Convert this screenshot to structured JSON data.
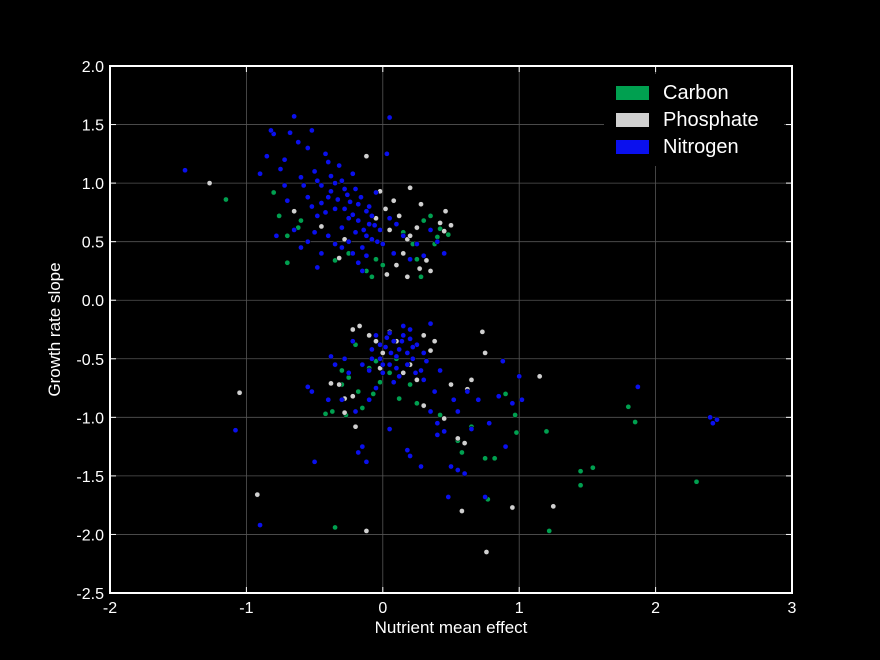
{
  "chart_data": {
    "type": "scatter",
    "title": "",
    "xlabel": "Nutrient mean effect",
    "ylabel": "Growth rate slope",
    "xlim": [
      -2,
      3
    ],
    "ylim": [
      -2.5,
      2.0
    ],
    "xticks": [
      "-2",
      "-1",
      "0",
      "1",
      "2",
      "3"
    ],
    "yticks": [
      "-2.5",
      "-2.0",
      "-1.5",
      "-1.0",
      "-0.5",
      "0.0",
      "0.5",
      "1.0",
      "1.5",
      "2.0"
    ],
    "grid": true,
    "legend_position": "top-right",
    "background": "#000000",
    "axes_color": "#ffffff",
    "grid_color": "#555555",
    "series": [
      {
        "name": "Carbon",
        "color": "#00a050",
        "points": [
          [
            -1.15,
            0.86
          ],
          [
            -0.8,
            0.92
          ],
          [
            -0.76,
            0.72
          ],
          [
            -0.7,
            0.55
          ],
          [
            -0.7,
            0.32
          ],
          [
            -0.62,
            0.62
          ],
          [
            -0.6,
            0.68
          ],
          [
            -0.35,
            0.34
          ],
          [
            -0.25,
            0.4
          ],
          [
            -0.12,
            0.25
          ],
          [
            -0.08,
            0.2
          ],
          [
            -0.05,
            0.35
          ],
          [
            0.0,
            0.3
          ],
          [
            0.15,
            0.58
          ],
          [
            0.22,
            0.48
          ],
          [
            0.25,
            0.35
          ],
          [
            0.3,
            0.68
          ],
          [
            0.35,
            0.72
          ],
          [
            0.38,
            0.48
          ],
          [
            0.4,
            0.54
          ],
          [
            0.42,
            0.61
          ],
          [
            0.48,
            0.56
          ],
          [
            0.28,
            0.2
          ],
          [
            -0.3,
            -0.72
          ],
          [
            -0.25,
            -0.66
          ],
          [
            -0.2,
            -0.38
          ],
          [
            -0.18,
            -0.78
          ],
          [
            -0.1,
            -0.58
          ],
          [
            -0.05,
            -0.52
          ],
          [
            -0.02,
            -0.7
          ],
          [
            0.05,
            -0.62
          ],
          [
            0.1,
            -0.5
          ],
          [
            -0.42,
            -0.97
          ],
          [
            -0.37,
            -0.95
          ],
          [
            -0.27,
            -0.98
          ],
          [
            -0.07,
            -0.8
          ],
          [
            0.12,
            -0.84
          ],
          [
            -0.3,
            -0.6
          ],
          [
            -0.15,
            -0.92
          ],
          [
            0.2,
            -0.72
          ],
          [
            0.25,
            -0.88
          ],
          [
            0.3,
            -0.9
          ],
          [
            0.55,
            -1.2
          ],
          [
            0.58,
            -1.3
          ],
          [
            0.75,
            -1.35
          ],
          [
            0.77,
            -1.7
          ],
          [
            0.82,
            -1.35
          ],
          [
            0.9,
            -0.8
          ],
          [
            0.97,
            -0.98
          ],
          [
            0.98,
            -1.13
          ],
          [
            1.2,
            -1.12
          ],
          [
            1.22,
            -1.97
          ],
          [
            1.45,
            -1.46
          ],
          [
            1.45,
            -1.58
          ],
          [
            1.54,
            -1.43
          ],
          [
            1.8,
            -0.91
          ],
          [
            1.85,
            -1.04
          ],
          [
            2.3,
            -1.55
          ],
          [
            -0.35,
            -1.94
          ],
          [
            0.42,
            -0.98
          ],
          [
            0.65,
            -1.08
          ]
        ]
      },
      {
        "name": "Phosphate",
        "color": "#d0d0d0",
        "points": [
          [
            -1.27,
            1.0
          ],
          [
            -0.65,
            0.76
          ],
          [
            -0.45,
            0.63
          ],
          [
            -0.32,
            0.36
          ],
          [
            -0.28,
            0.52
          ],
          [
            -0.12,
            1.23
          ],
          [
            -0.05,
            0.7
          ],
          [
            -0.02,
            0.93
          ],
          [
            0.02,
            0.78
          ],
          [
            0.05,
            0.6
          ],
          [
            0.08,
            0.85
          ],
          [
            0.12,
            0.72
          ],
          [
            0.18,
            0.52
          ],
          [
            0.2,
            0.55
          ],
          [
            0.2,
            0.96
          ],
          [
            0.25,
            0.62
          ],
          [
            0.27,
            0.27
          ],
          [
            0.28,
            0.82
          ],
          [
            0.32,
            0.34
          ],
          [
            0.35,
            0.25
          ],
          [
            0.42,
            0.66
          ],
          [
            0.45,
            0.59
          ],
          [
            0.46,
            0.76
          ],
          [
            0.5,
            0.64
          ],
          [
            0.03,
            0.22
          ],
          [
            0.15,
            0.4
          ],
          [
            0.1,
            0.3
          ],
          [
            0.18,
            0.2
          ],
          [
            -1.05,
            -0.79
          ],
          [
            -0.92,
            -1.66
          ],
          [
            -0.38,
            -0.71
          ],
          [
            -0.32,
            -0.72
          ],
          [
            -0.28,
            -0.96
          ],
          [
            -0.22,
            -0.25
          ],
          [
            -0.22,
            -0.82
          ],
          [
            -0.2,
            -1.08
          ],
          [
            -0.17,
            -0.22
          ],
          [
            -0.12,
            -1.97
          ],
          [
            -0.1,
            -0.3
          ],
          [
            -0.05,
            -0.35
          ],
          [
            -0.02,
            -0.58
          ],
          [
            0.0,
            -0.45
          ],
          [
            0.05,
            -0.27
          ],
          [
            0.1,
            -0.35
          ],
          [
            0.15,
            -0.62
          ],
          [
            0.2,
            -0.55
          ],
          [
            0.25,
            -0.68
          ],
          [
            0.3,
            -0.9
          ],
          [
            0.3,
            -0.3
          ],
          [
            0.35,
            -0.43
          ],
          [
            0.38,
            -0.35
          ],
          [
            0.45,
            -1.01
          ],
          [
            0.5,
            -0.72
          ],
          [
            0.55,
            -1.18
          ],
          [
            0.58,
            -1.8
          ],
          [
            0.6,
            -1.22
          ],
          [
            0.65,
            -0.68
          ],
          [
            0.73,
            -0.27
          ],
          [
            0.75,
            -0.45
          ],
          [
            0.76,
            -2.15
          ],
          [
            0.95,
            -1.77
          ],
          [
            1.15,
            -0.65
          ],
          [
            1.25,
            -1.76
          ],
          [
            -0.28,
            -0.84
          ],
          [
            0.62,
            -0.76
          ]
        ]
      },
      {
        "name": "Nitrogen",
        "color": "#0a10ee",
        "points": [
          [
            -1.45,
            1.11
          ],
          [
            -0.9,
            1.08
          ],
          [
            -0.85,
            1.23
          ],
          [
            -0.8,
            1.42
          ],
          [
            -0.75,
            1.12
          ],
          [
            -0.72,
            1.2
          ],
          [
            -0.7,
            0.85
          ],
          [
            -0.68,
            1.43
          ],
          [
            -0.65,
            1.57
          ],
          [
            -0.62,
            1.35
          ],
          [
            -0.6,
            1.05
          ],
          [
            -0.58,
            0.98
          ],
          [
            -0.55,
            1.3
          ],
          [
            -0.52,
            1.45
          ],
          [
            -0.5,
            1.1
          ],
          [
            -0.48,
            0.72
          ],
          [
            -0.45,
            0.98
          ],
          [
            -0.42,
            1.25
          ],
          [
            -0.4,
            0.88
          ],
          [
            -0.38,
            1.06
          ],
          [
            -0.35,
            0.78
          ],
          [
            -0.32,
            1.15
          ],
          [
            -0.3,
            0.62
          ],
          [
            -0.28,
            0.95
          ],
          [
            -0.25,
            0.7
          ],
          [
            -0.22,
            1.08
          ],
          [
            -0.2,
            0.58
          ],
          [
            -0.18,
            0.82
          ],
          [
            -0.15,
            0.45
          ],
          [
            -0.12,
            0.76
          ],
          [
            -0.1,
            0.65
          ],
          [
            -0.08,
            0.52
          ],
          [
            -0.05,
            0.92
          ],
          [
            -0.02,
            0.6
          ],
          [
            0.0,
            0.48
          ],
          [
            0.03,
            1.25
          ],
          [
            0.05,
            0.7
          ],
          [
            0.08,
            0.4
          ],
          [
            0.1,
            0.65
          ],
          [
            0.15,
            0.55
          ],
          [
            0.2,
            0.35
          ],
          [
            0.25,
            0.48
          ],
          [
            -0.55,
            0.88
          ],
          [
            -0.52,
            0.8
          ],
          [
            -0.48,
            1.02
          ],
          [
            -0.45,
            0.83
          ],
          [
            -0.42,
            0.75
          ],
          [
            -0.4,
            1.18
          ],
          [
            -0.38,
            0.93
          ],
          [
            -0.35,
            1.0
          ],
          [
            -0.33,
            0.86
          ],
          [
            -0.3,
            1.02
          ],
          [
            -0.28,
            0.78
          ],
          [
            -0.26,
            0.9
          ],
          [
            -0.24,
            0.84
          ],
          [
            -0.22,
            0.73
          ],
          [
            -0.2,
            0.95
          ],
          [
            -0.18,
            0.68
          ],
          [
            -0.16,
            0.88
          ],
          [
            -0.14,
            0.6
          ],
          [
            -0.12,
            0.55
          ],
          [
            -0.1,
            0.8
          ],
          [
            -0.08,
            0.72
          ],
          [
            -0.06,
            0.64
          ],
          [
            -0.04,
            0.5
          ],
          [
            -0.25,
            0.5
          ],
          [
            -0.3,
            0.45
          ],
          [
            -0.22,
            0.4
          ],
          [
            -0.18,
            0.32
          ],
          [
            -0.12,
            0.38
          ],
          [
            -0.15,
            0.25
          ],
          [
            -0.78,
            0.55
          ],
          [
            -0.65,
            0.6
          ],
          [
            -0.6,
            0.45
          ],
          [
            -0.55,
            0.5
          ],
          [
            -0.5,
            0.58
          ],
          [
            -0.45,
            0.4
          ],
          [
            -0.4,
            0.55
          ],
          [
            -0.35,
            0.48
          ],
          [
            -0.48,
            0.28
          ],
          [
            0.05,
            1.56
          ],
          [
            -0.82,
            1.45
          ],
          [
            -0.72,
            0.98
          ],
          [
            0.4,
            0.5
          ],
          [
            0.45,
            0.4
          ],
          [
            0.35,
            0.6
          ],
          [
            0.3,
            0.38
          ],
          [
            -1.08,
            -1.11
          ],
          [
            -0.9,
            -1.92
          ],
          [
            -0.55,
            -0.74
          ],
          [
            -0.52,
            -0.78
          ],
          [
            -0.5,
            -1.38
          ],
          [
            -0.4,
            -0.85
          ],
          [
            -0.38,
            -0.48
          ],
          [
            -0.35,
            -0.55
          ],
          [
            -0.3,
            -0.85
          ],
          [
            -0.28,
            -0.5
          ],
          [
            -0.25,
            -0.62
          ],
          [
            -0.22,
            -0.35
          ],
          [
            -0.2,
            -0.95
          ],
          [
            -0.18,
            -1.3
          ],
          [
            -0.15,
            -0.55
          ],
          [
            -0.12,
            -1.38
          ],
          [
            -0.1,
            -0.6
          ],
          [
            -0.08,
            -0.42
          ],
          [
            -0.05,
            -0.3
          ],
          [
            -0.02,
            -0.5
          ],
          [
            0.0,
            -0.62
          ],
          [
            0.02,
            -0.4
          ],
          [
            0.05,
            -0.55
          ],
          [
            0.08,
            -0.35
          ],
          [
            0.1,
            -0.48
          ],
          [
            0.12,
            -0.42
          ],
          [
            0.15,
            -0.3
          ],
          [
            0.18,
            -0.55
          ],
          [
            0.2,
            -0.25
          ],
          [
            0.22,
            -0.5
          ],
          [
            0.25,
            -0.38
          ],
          [
            0.28,
            -0.6
          ],
          [
            0.3,
            -0.45
          ],
          [
            0.32,
            -0.52
          ],
          [
            0.35,
            -0.95
          ],
          [
            0.38,
            -0.78
          ],
          [
            0.4,
            -1.15
          ],
          [
            0.42,
            -0.6
          ],
          [
            0.45,
            -1.12
          ],
          [
            0.5,
            -1.42
          ],
          [
            0.52,
            -0.85
          ],
          [
            0.55,
            -0.95
          ],
          [
            0.6,
            -1.48
          ],
          [
            0.62,
            -0.78
          ],
          [
            0.65,
            -1.1
          ],
          [
            0.7,
            -0.85
          ],
          [
            0.75,
            -1.68
          ],
          [
            0.78,
            -1.05
          ],
          [
            0.85,
            -0.82
          ],
          [
            0.88,
            -0.52
          ],
          [
            0.9,
            -1.25
          ],
          [
            0.95,
            -0.88
          ],
          [
            1.0,
            -0.65
          ],
          [
            1.02,
            -0.85
          ],
          [
            0.18,
            -1.28
          ],
          [
            0.2,
            -1.33
          ],
          [
            0.4,
            -1.05
          ],
          [
            0.48,
            -1.68
          ],
          [
            0.28,
            -1.42
          ],
          [
            -0.05,
            -0.75
          ],
          [
            0.12,
            -0.65
          ],
          [
            0.08,
            -0.7
          ],
          [
            -0.02,
            -0.38
          ],
          [
            0.05,
            -0.28
          ],
          [
            0.15,
            -0.22
          ],
          [
            0.22,
            -0.4
          ],
          [
            0.1,
            -0.58
          ],
          [
            0.18,
            -0.45
          ],
          [
            0.14,
            -0.35
          ],
          [
            0.24,
            -0.62
          ],
          [
            0.06,
            -0.45
          ],
          [
            -0.08,
            -0.5
          ],
          [
            0.0,
            -0.55
          ],
          [
            0.03,
            -0.32
          ],
          [
            0.2,
            -0.33
          ],
          [
            1.87,
            -0.74
          ],
          [
            2.4,
            -1.0
          ],
          [
            2.42,
            -1.05
          ],
          [
            2.45,
            -1.02
          ],
          [
            0.05,
            -1.1
          ],
          [
            -0.15,
            -1.25
          ],
          [
            0.55,
            -1.45
          ],
          [
            -0.1,
            -0.85
          ],
          [
            0.3,
            -0.68
          ],
          [
            0.35,
            -0.2
          ]
        ]
      }
    ]
  }
}
